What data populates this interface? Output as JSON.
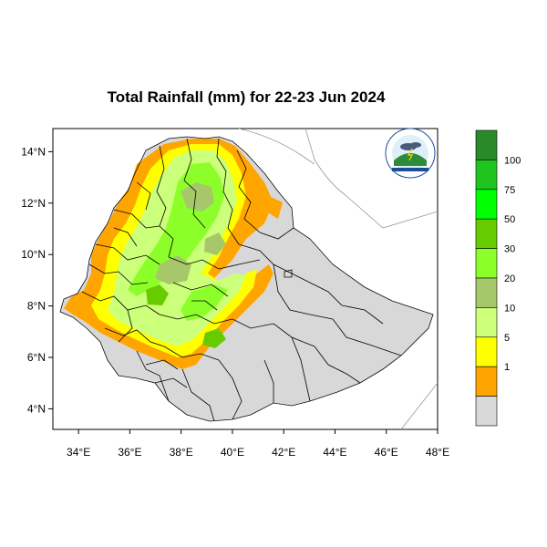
{
  "title": "Total Rainfall (mm) for 22-23 Jun 2024",
  "map": {
    "lon_range": [
      33,
      48
    ],
    "lat_range": [
      3.2,
      14.9
    ],
    "x_ticks": [
      "34°E",
      "36°E",
      "38°E",
      "40°E",
      "42°E",
      "44°E",
      "46°E",
      "48°E"
    ],
    "y_ticks": [
      "14°N",
      "12°N",
      "10°N",
      "8°N",
      "6°N",
      "4°N"
    ],
    "x_tick_values": [
      34,
      36,
      38,
      40,
      42,
      44,
      46,
      48
    ],
    "y_tick_values": [
      14,
      12,
      10,
      8,
      6,
      4
    ]
  },
  "legend": {
    "labels": [
      "100",
      "75",
      "50",
      "30",
      "20",
      "10",
      "5",
      "1"
    ],
    "colors": [
      "#2a8a2a",
      "#1fc41f",
      "#00ff00",
      "#66cc00",
      "#8cff2a",
      "#a6c86a",
      "#ccff7a",
      "#ffff00",
      "#ffa500",
      "#d8d8d8"
    ]
  },
  "colors": {
    "land": "#d8d8d8",
    "orange": "#ffa500",
    "yellow": "#ffff00",
    "light_green": "#ccff7a",
    "green": "#8cff2a",
    "olive": "#a6c86a",
    "mid_green": "#66cc00"
  },
  "logo_icon": "ethiopian-meteorology-institute-logo"
}
